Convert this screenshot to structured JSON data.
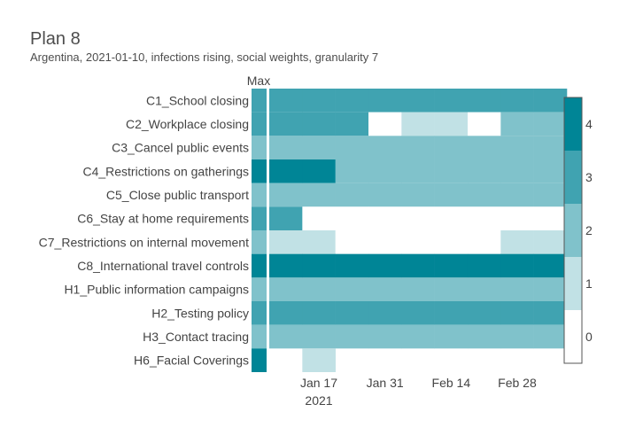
{
  "chart_data": {
    "type": "heatmap",
    "title": "Plan 8",
    "subtitle": "Argentina, 2021-01-10, infections rising, social weights, granularity 7",
    "max_header": "Max",
    "rows": [
      "C1_School closing",
      "C2_Workplace closing",
      "C3_Cancel public events",
      "C4_Restrictions on gatherings",
      "C5_Close public transport",
      "C6_Stay at home requirements",
      "C7_Restrictions on internal movement",
      "C8_International travel controls",
      "H1_Public information campaigns",
      "H2_Testing policy",
      "H3_Contact tracing",
      "H6_Facial Coverings"
    ],
    "max_values": [
      3,
      3,
      2,
      4,
      2,
      3,
      2,
      4,
      2,
      3,
      2,
      4
    ],
    "x_start": "2021-01-10",
    "x_step_days": 7,
    "columns": [
      "2021-01-10",
      "2021-01-17",
      "2021-01-24",
      "2021-01-31",
      "2021-02-07",
      "2021-02-14",
      "2021-02-21",
      "2021-02-28",
      "2021-03-07"
    ],
    "values": [
      [
        3,
        3,
        3,
        3,
        3,
        3,
        3,
        3,
        3
      ],
      [
        3,
        3,
        3,
        0,
        1,
        1,
        0,
        2,
        2
      ],
      [
        2,
        2,
        2,
        2,
        2,
        2,
        2,
        2,
        2
      ],
      [
        4,
        4,
        2,
        2,
        2,
        2,
        2,
        2,
        2
      ],
      [
        2,
        2,
        2,
        2,
        2,
        2,
        2,
        2,
        2
      ],
      [
        3,
        0,
        0,
        0,
        0,
        0,
        0,
        0,
        0
      ],
      [
        1,
        1,
        0,
        0,
        0,
        0,
        0,
        1,
        1
      ],
      [
        4,
        4,
        4,
        4,
        4,
        4,
        4,
        4,
        4
      ],
      [
        2,
        2,
        2,
        2,
        2,
        2,
        2,
        2,
        2
      ],
      [
        3,
        3,
        3,
        3,
        3,
        3,
        3,
        3,
        3
      ],
      [
        2,
        2,
        2,
        2,
        2,
        2,
        2,
        2,
        2
      ],
      [
        null,
        1,
        null,
        null,
        null,
        null,
        null,
        null,
        null
      ]
    ],
    "x_ticks": [
      {
        "date": "2021-01-17",
        "label": "Jan 17",
        "sublabel": "2021"
      },
      {
        "date": "2021-01-31",
        "label": "Jan 31",
        "sublabel": ""
      },
      {
        "date": "2021-02-14",
        "label": "Feb 14",
        "sublabel": ""
      },
      {
        "date": "2021-02-28",
        "label": "Feb 28",
        "sublabel": ""
      }
    ],
    "colorscale": [
      {
        "value": 0,
        "color": "#ffffff"
      },
      {
        "value": 1,
        "color": "#c1e1e5"
      },
      {
        "value": 2,
        "color": "#80c2cb"
      },
      {
        "value": 3,
        "color": "#40a3b1"
      },
      {
        "value": 4,
        "color": "#008596"
      }
    ],
    "colorbar_ticks": [
      0,
      1,
      2,
      3,
      4
    ],
    "colorbar_range": [
      -0.5,
      4.5
    ]
  }
}
